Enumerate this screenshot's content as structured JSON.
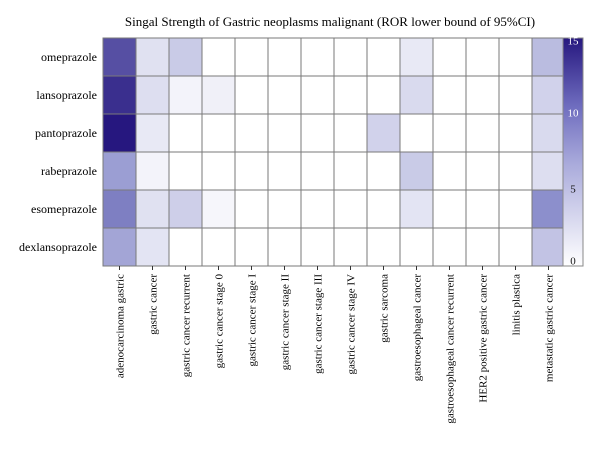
{
  "chart_data": {
    "type": "heatmap",
    "title": "Singal Strength of Gastric neoplasms malignant (ROR lower bound of 95%CI)",
    "rows": [
      "omeprazole",
      "lansoprazole",
      "pantoprazole",
      "rabeprazole",
      "esomeprazole",
      "dexlansoprazole"
    ],
    "columns": [
      "adenocarcinoma gastric",
      "gastric cancer",
      "gastric cancer recurrent",
      "gastric cancer stage 0",
      "gastric cancer stage I",
      "gastric cancer stage II",
      "gastric cancer stage III",
      "gastric cancer stage IV",
      "gastric sarcoma",
      "gastroesophageal cancer",
      "gastroesophageal cancer recurrent",
      "HER2 positive gastric cancer",
      "linitis plastica",
      "metastatic gastric cancer"
    ],
    "values": [
      [
        11.5,
        2.0,
        3.5,
        0,
        0,
        0,
        0,
        0,
        0,
        1.5,
        0,
        0,
        0,
        4.5
      ],
      [
        13.5,
        2.2,
        0.8,
        1.0,
        0,
        0,
        0,
        0,
        0,
        2.5,
        0,
        0,
        0,
        3.0
      ],
      [
        15.0,
        1.5,
        0,
        0,
        0,
        0,
        0,
        0,
        3.0,
        0,
        0,
        0,
        0,
        2.5
      ],
      [
        6.5,
        0.8,
        0,
        0,
        0,
        0,
        0,
        0,
        0,
        3.5,
        0,
        0,
        0,
        2.2
      ],
      [
        8.5,
        2.0,
        3.2,
        0.6,
        0,
        0,
        0,
        0,
        0,
        1.8,
        0,
        0,
        0,
        7.5
      ],
      [
        6.0,
        1.8,
        0,
        0,
        0,
        0,
        0,
        0,
        0,
        0,
        0,
        0,
        0,
        4.0
      ]
    ],
    "colorbar": {
      "min": 0,
      "max": 15,
      "ticks": [
        0,
        5,
        10,
        15
      ]
    },
    "colors": {
      "low": "#ffffff",
      "mid": "#8c8fcc",
      "high": "#26177f",
      "grid": "#7a7a7a"
    }
  }
}
